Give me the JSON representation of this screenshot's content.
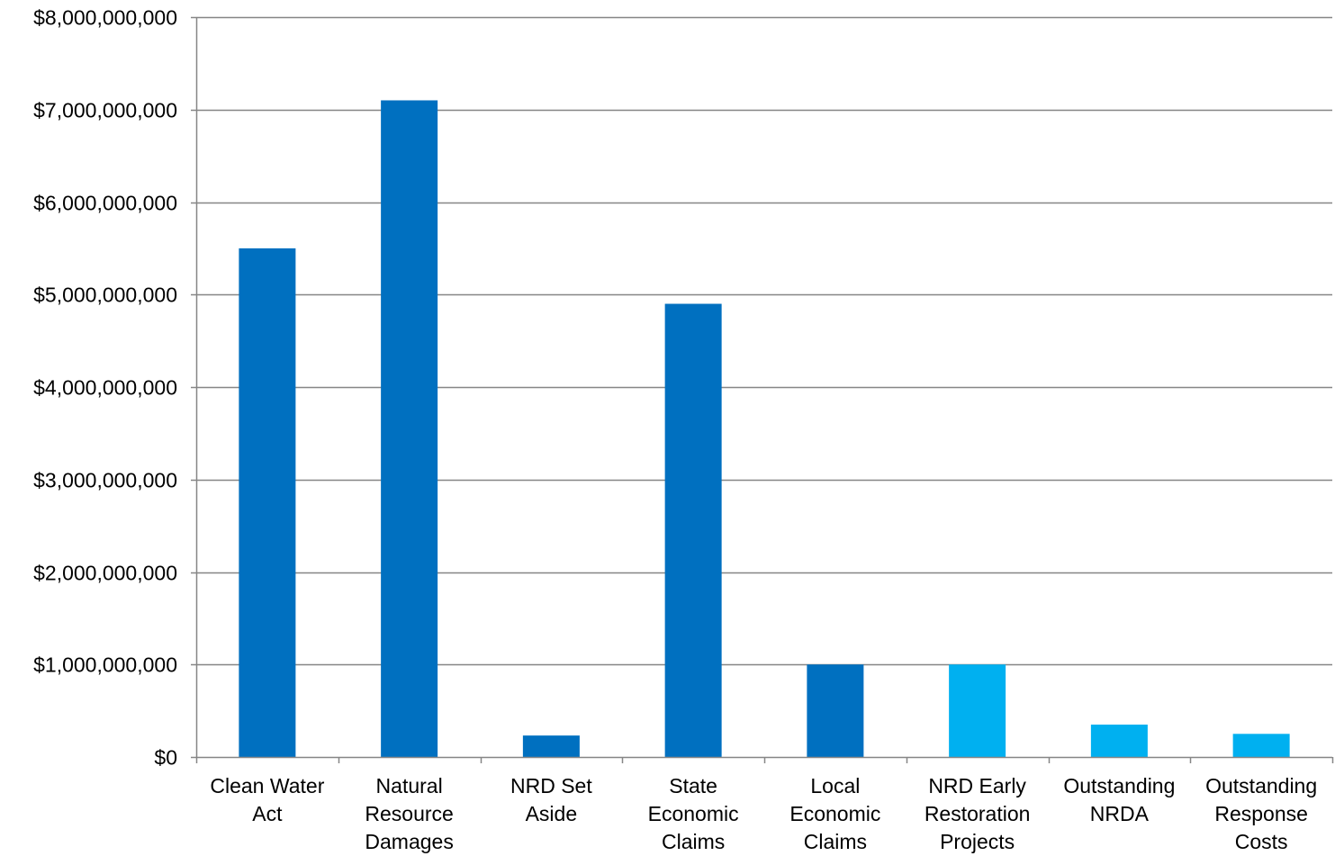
{
  "chart_data": {
    "type": "bar",
    "title": "",
    "xlabel": "",
    "ylabel": "",
    "ylim": [
      0,
      8000000000
    ],
    "yticks": [
      {
        "value": 0,
        "label": "$0"
      },
      {
        "value": 1000000000,
        "label": "$1,000,000,000"
      },
      {
        "value": 2000000000,
        "label": "$2,000,000,000"
      },
      {
        "value": 3000000000,
        "label": "$3,000,000,000"
      },
      {
        "value": 4000000000,
        "label": "$4,000,000,000"
      },
      {
        "value": 5000000000,
        "label": "$5,000,000,000"
      },
      {
        "value": 6000000000,
        "label": "$6,000,000,000"
      },
      {
        "value": 7000000000,
        "label": "$7,000,000,000"
      },
      {
        "value": 8000000000,
        "label": "$8,000,000,000"
      }
    ],
    "grid": true,
    "legend": "none",
    "categories": [
      [
        "Clean Water",
        "Act"
      ],
      [
        "Natural",
        "Resource",
        "Damages"
      ],
      [
        "NRD Set",
        "Aside"
      ],
      [
        "State",
        "Economic",
        "Claims"
      ],
      [
        "Local",
        "Economic",
        "Claims"
      ],
      [
        "NRD Early",
        "Restoration",
        "Projects"
      ],
      [
        "Outstanding",
        "NRDA"
      ],
      [
        "Outstanding",
        "Response",
        "Costs"
      ]
    ],
    "values": [
      5500000000,
      7100000000,
      232000000,
      4900000000,
      1000000000,
      1000000000,
      350000000,
      250000000
    ],
    "bar_colors": [
      "#0070C0",
      "#0070C0",
      "#0070C0",
      "#0070C0",
      "#0070C0",
      "#00B0F0",
      "#00B0F0",
      "#00B0F0"
    ],
    "colors": {
      "primary": "#0070C0",
      "secondary": "#00B0F0",
      "grid": "#868686",
      "axis": "#868686"
    }
  }
}
